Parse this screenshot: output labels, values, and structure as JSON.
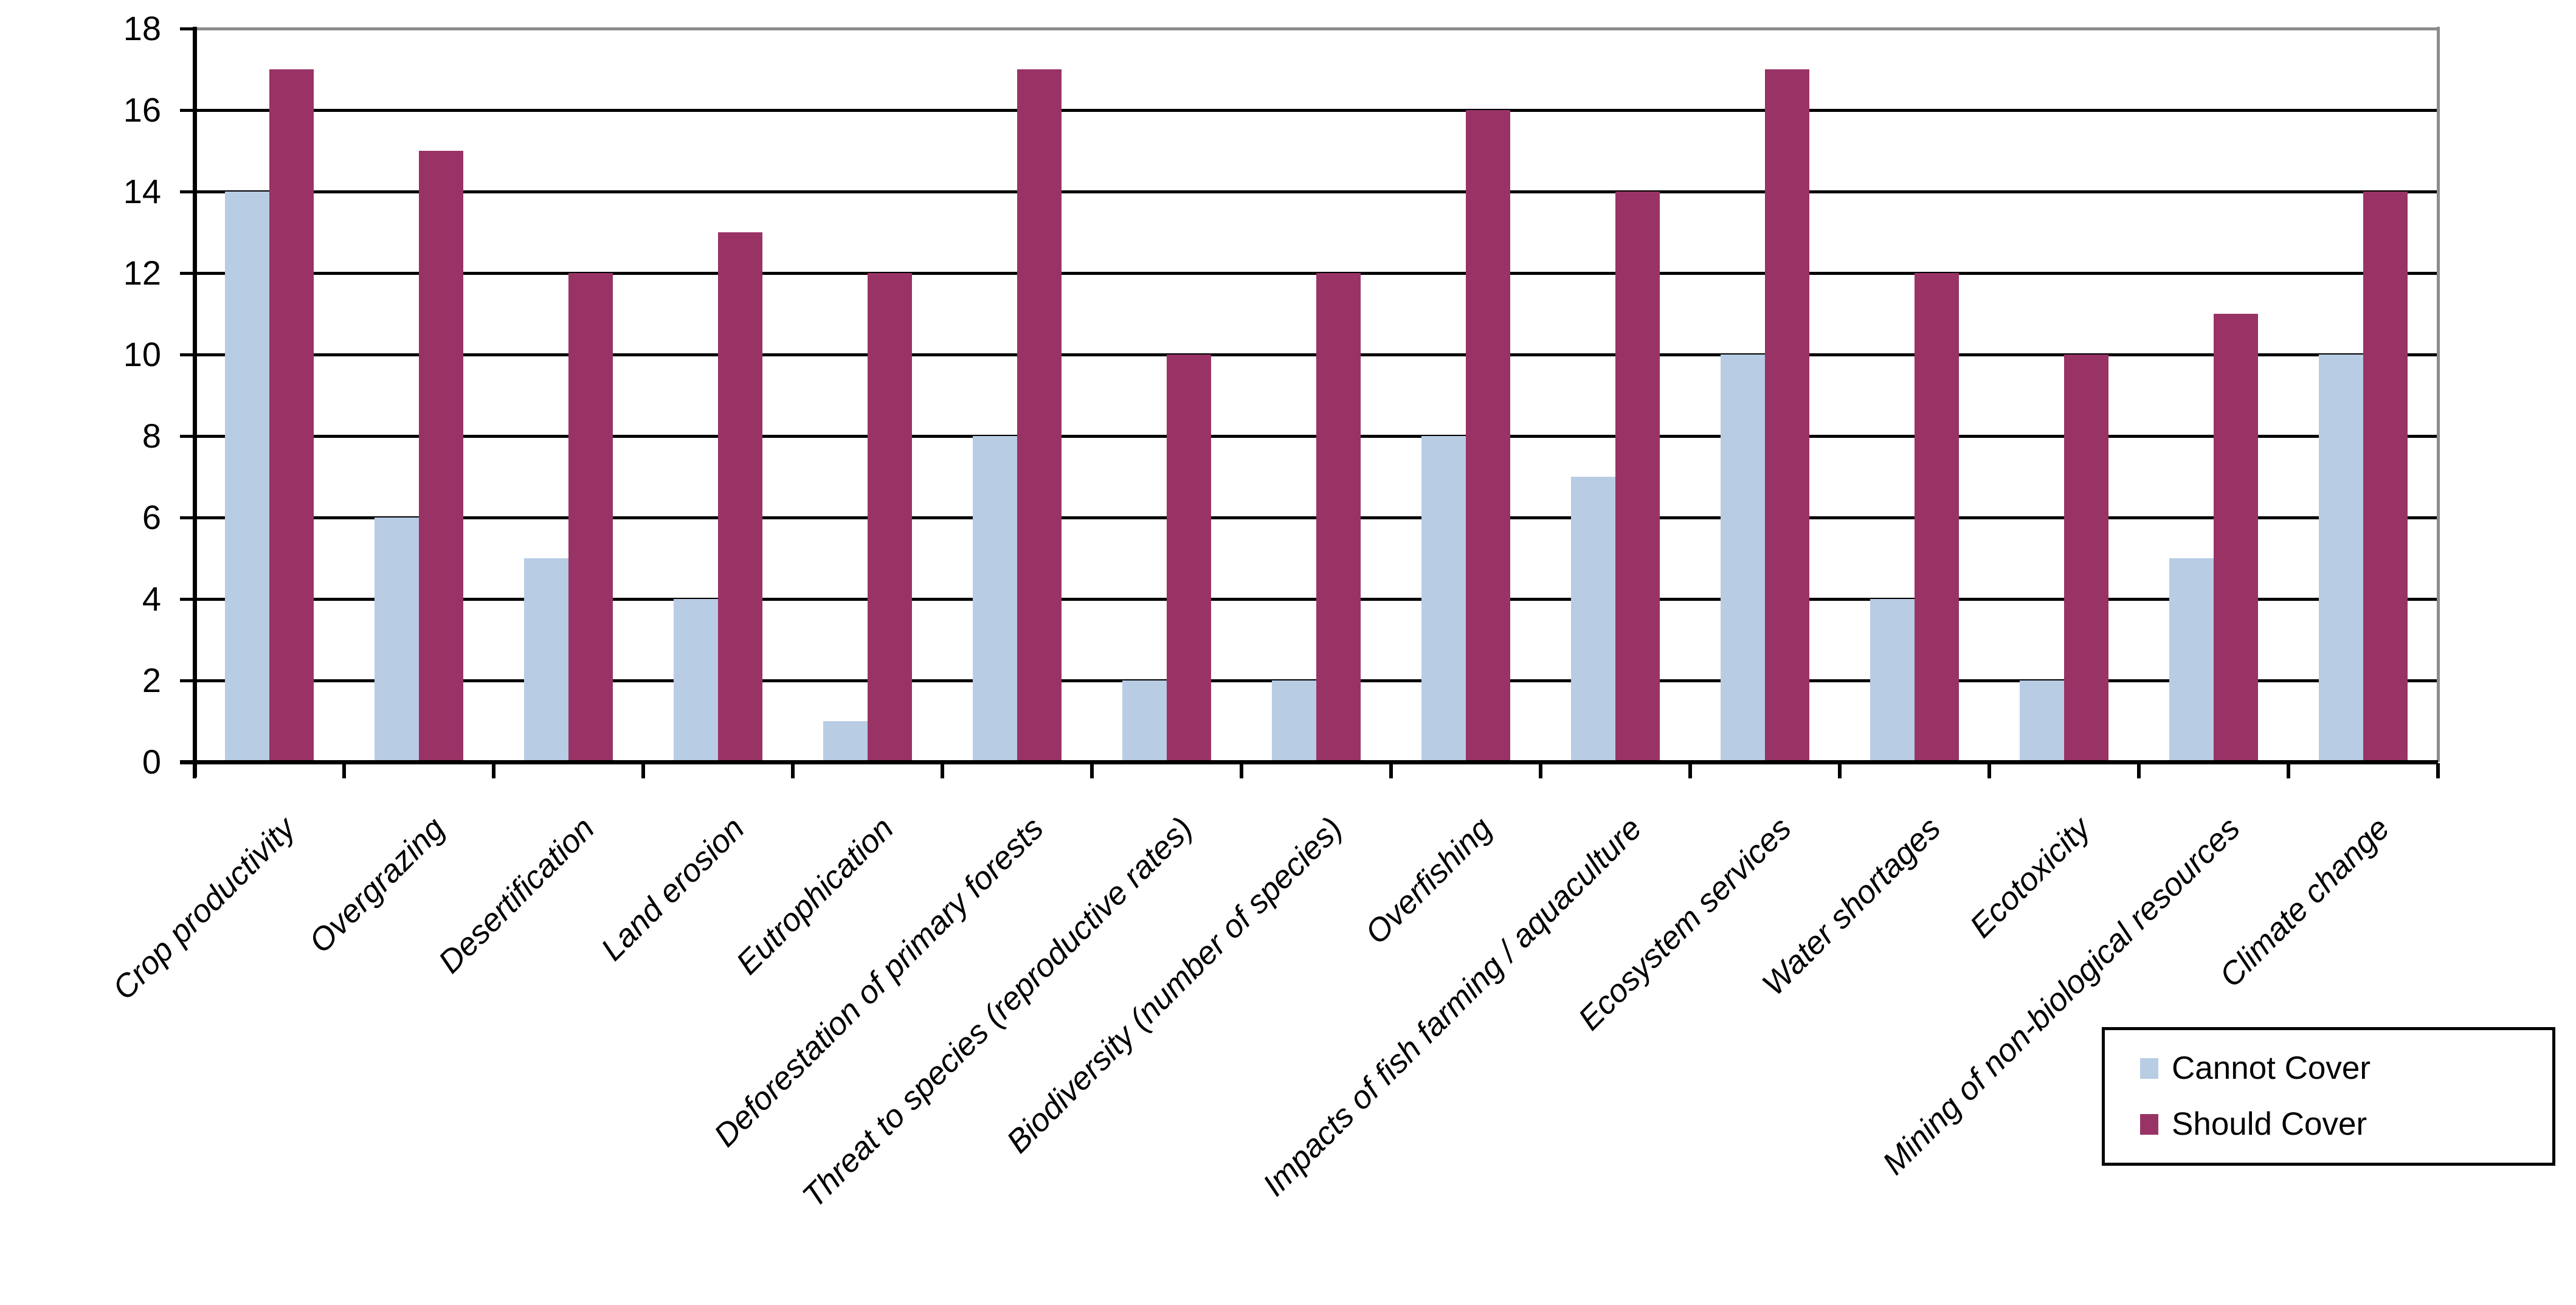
{
  "chart_data": {
    "type": "bar",
    "title": "",
    "xlabel": "",
    "ylabel": "",
    "categories": [
      "Crop productivity",
      "Overgrazing",
      "Desertification",
      "Land erosion",
      "Eutrophication",
      "Deforestation of primary forests",
      "Threat to species (reproductive rates)",
      "Biodiversity (number of species)",
      "Overfishing",
      "Impacts of fish farming / aquaculture",
      "Ecosystem services",
      "Water shortages",
      "Ecotoxicity",
      "Mining of non-biological resources",
      "Climate change"
    ],
    "series": [
      {
        "name": "Cannot Cover",
        "color": "#B8CCE4",
        "values": [
          14,
          6,
          5,
          4,
          1,
          8,
          2,
          2,
          8,
          7,
          10,
          4,
          2,
          5,
          10
        ]
      },
      {
        "name": "Should Cover",
        "color": "#993366",
        "values": [
          17,
          15,
          12,
          13,
          12,
          17,
          10,
          12,
          16,
          14,
          17,
          12,
          10,
          11,
          14
        ]
      }
    ],
    "y_axis": {
      "min": 0,
      "max": 18,
      "step": 2,
      "tick_labels": [
        "0",
        "2",
        "4",
        "6",
        "8",
        "10",
        "12",
        "14",
        "16",
        "18"
      ]
    },
    "ylim": [
      0,
      18
    ],
    "grid": true,
    "gridline_color": "#000000",
    "frame_color": "#8C8C8C",
    "legend_position": "bottom-right",
    "legend": {
      "items": [
        {
          "label": "Cannot Cover",
          "color": "#B8CCE4"
        },
        {
          "label": "Should Cover",
          "color": "#993366"
        }
      ]
    }
  }
}
